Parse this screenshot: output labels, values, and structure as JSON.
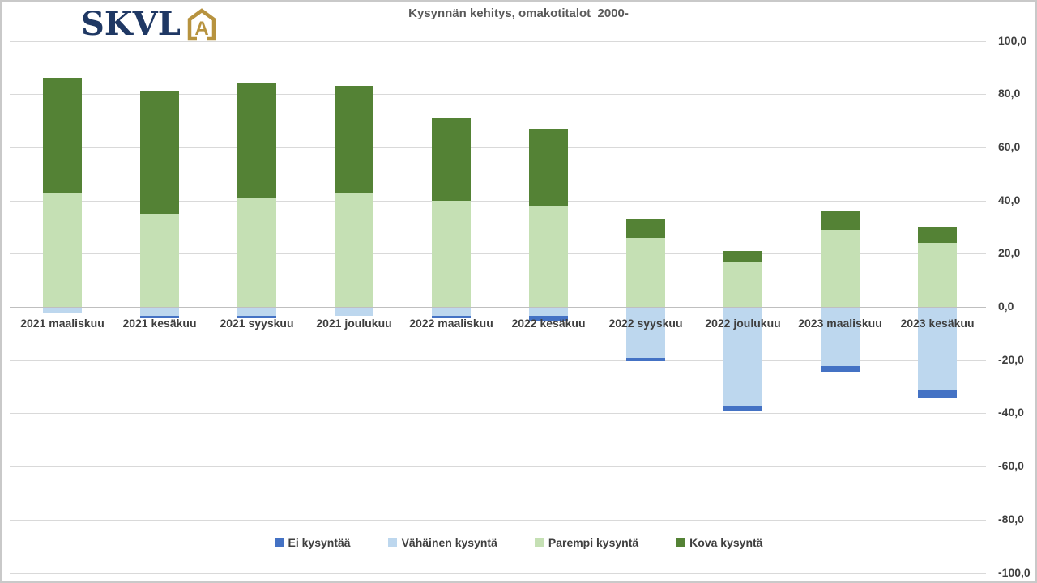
{
  "title": "Kysynnän kehitys, omakotitalot  2000-",
  "logo": {
    "text": "SKVL",
    "icon": "house-a-icon",
    "icon_letter": "A",
    "navy": "#1f3864",
    "gold": "#b7933f"
  },
  "colors": {
    "gridline": "#d9d9d9",
    "zero_line": "#bfbfbf",
    "axis_text": "#3f3f3f",
    "title_text": "#595959",
    "background": "#ffffff"
  },
  "chart_data": {
    "type": "bar",
    "stacked": true,
    "title": "Kysynnän kehitys, omakotitalot  2000-",
    "xlabel": "",
    "ylabel": "",
    "ylim": [
      -100,
      100
    ],
    "grid": true,
    "legend_position": "bottom",
    "y_tick_format": "decimal-comma",
    "categories": [
      "2021 maaliskuu",
      "2021 kesäkuu",
      "2021 syyskuu",
      "2021 joulukuu",
      "2022 maaliskuu",
      "2022 kesäkuu",
      "2022 syyskuu",
      "2022 joulukuu",
      "2023 maaliskuu",
      "2023 kesäkuu"
    ],
    "series": [
      {
        "name": "Ei kysyntää",
        "color": "#4472c4",
        "values": [
          0,
          -1,
          -1,
          0,
          -1,
          -2,
          -1,
          -2,
          -2,
          -3
        ]
      },
      {
        "name": "Vähäinen kysyntä",
        "color": "#bdd7ee",
        "values": [
          -2,
          -3,
          -3,
          -3,
          -3,
          -3,
          -19,
          -37,
          -22,
          -31
        ]
      },
      {
        "name": "Parempi kysyntä",
        "color": "#c5e0b4",
        "values": [
          43,
          35,
          41,
          43,
          40,
          38,
          26,
          17,
          29,
          24
        ]
      },
      {
        "name": "Kova kysyntä",
        "color": "#548235",
        "values": [
          43,
          46,
          43,
          40,
          31,
          29,
          7,
          4,
          7,
          6
        ]
      }
    ],
    "y_ticks": [
      {
        "value": 100,
        "label": "100,0"
      },
      {
        "value": 80,
        "label": "80,0"
      },
      {
        "value": 60,
        "label": "60,0"
      },
      {
        "value": 40,
        "label": "40,0"
      },
      {
        "value": 20,
        "label": "20,0"
      },
      {
        "value": 0,
        "label": "0,0"
      },
      {
        "value": -20,
        "label": "-20,0"
      },
      {
        "value": -40,
        "label": "-40,0"
      },
      {
        "value": -60,
        "label": "-60,0"
      },
      {
        "value": -80,
        "label": "-80,0"
      },
      {
        "value": -100,
        "label": "-100,0"
      }
    ]
  }
}
